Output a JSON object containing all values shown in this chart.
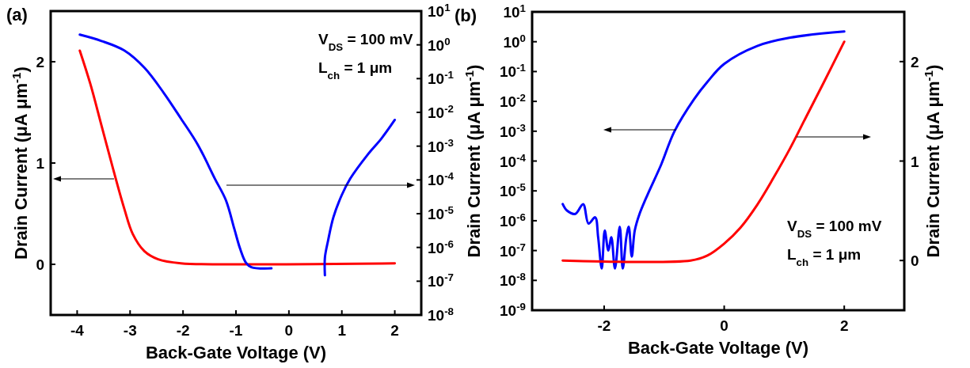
{
  "chart_data": [
    {
      "type": "line",
      "title": "(a)",
      "xlabel": "Back-Gate Voltage (V)",
      "ylabel": "Drain Current (μA μm$^{-1}$)",
      "xlim": [
        -4.5,
        2.5
      ],
      "xticks": [
        -4,
        -3,
        -2,
        -1,
        0,
        1,
        2
      ],
      "ylim": [
        -0.5,
        2.5
      ],
      "yticks": [
        0,
        1,
        2
      ],
      "y2lim": [
        1e-08,
        10
      ],
      "y2ticks": [
        {
          "value": 1e-08,
          "label": "10$^{-8}$"
        },
        {
          "value": 1e-07,
          "label": "10$^{-7}$"
        },
        {
          "value": 1e-06,
          "label": "10$^{-6}$"
        },
        {
          "value": 1e-05,
          "label": "10$^{-5}$"
        },
        {
          "value": 0.0001,
          "label": "10$^{-4}$"
        },
        {
          "value": 0.001,
          "label": "10$^{-3}$"
        },
        {
          "value": 0.01,
          "label": "10$^{-2}$"
        },
        {
          "value": 0.1,
          "label": "10$^{-1}$"
        },
        {
          "value": 1,
          "label": "10$^{0}$"
        },
        {
          "value": 10,
          "label": "10$^{1}$"
        }
      ],
      "log": "y2",
      "grid": false,
      "annotations": [
        "V$_{DS}$ = 100 mV",
        "L$_{ch}$ = 1 μm"
      ],
      "series": [
        {
          "color": "#ff0000",
          "x": [
            -3.95,
            -3.75,
            -3.54,
            -3.32,
            -3.11,
            -2.95,
            -2.73,
            -2.47,
            -2.04,
            -1.19,
            2.0
          ],
          "values": [
            2.11,
            1.78,
            1.37,
            0.94,
            0.55,
            0.3,
            0.13,
            0.05,
            0.01,
            0,
            0.01
          ]
        },
        {
          "color": "#0000ff",
          "axis": "y2",
          "x": [
            -3.95,
            -3.54,
            -3.11,
            -2.73,
            -2.36,
            -2.04,
            -1.72,
            -1.4,
            -1.19,
            -1.03,
            -0.92,
            -0.81,
            -0.71,
            -0.33,
            0.2,
            0.68,
            0.68,
            0.74,
            0.84,
            1.0,
            1.16,
            1.48,
            1.75,
            2.0
          ],
          "values": [
            2.0,
            1.3,
            0.68,
            0.21,
            0.037,
            0.0066,
            0.0011,
            0.00011,
            2.5e-05,
            3.5e-06,
            9e-07,
            3.5e-07,
            2.6e-07,
            2.4e-07,
            null,
            1.5e-07,
            5e-07,
            1.6e-06,
            7.8e-06,
            3.6e-05,
            0.00011,
            0.00054,
            0.0017,
            0.006
          ]
        }
      ]
    },
    {
      "type": "line",
      "title": "(b)",
      "xlabel": "Back-Gate Voltage (V)",
      "ylabel": "Drain Current (μA μm$^{-1}$)",
      "y2label": "Drain Current (μA μm$^{-1}$)",
      "xlim": [
        -3.2,
        3
      ],
      "xticks": [
        -2,
        0,
        2
      ],
      "ylim": [
        1e-09,
        10
      ],
      "yticks": [
        {
          "value": 1e-09,
          "label": "10$^{-9}$"
        },
        {
          "value": 1e-08,
          "label": "10$^{-8}$"
        },
        {
          "value": 1e-07,
          "label": "10$^{-7}$"
        },
        {
          "value": 1e-06,
          "label": "10$^{-6}$"
        },
        {
          "value": 1e-05,
          "label": "10$^{-5}$"
        },
        {
          "value": 0.0001,
          "label": "10$^{-4}$"
        },
        {
          "value": 0.001,
          "label": "10$^{-3}$"
        },
        {
          "value": 0.01,
          "label": "10$^{-2}$"
        },
        {
          "value": 0.1,
          "label": "10$^{-1}$"
        },
        {
          "value": 1,
          "label": "10$^{0}$"
        },
        {
          "value": 10,
          "label": "10$^{1}$"
        }
      ],
      "y2lim": [
        -0.5,
        2.5
      ],
      "y2ticks": [
        0,
        1,
        2
      ],
      "log": "y",
      "grid": false,
      "annotations": [
        "V$_{DS}$ = 100 mV",
        "L$_{ch}$ = 1 μm"
      ],
      "series": [
        {
          "color": "#0000ff",
          "x": [
            -2.69,
            -2.62,
            -2.48,
            -2.35,
            -2.26,
            -2.15,
            -2.1,
            -2.04,
            -1.99,
            -1.93,
            -1.88,
            -1.82,
            -1.74,
            -1.69,
            -1.63,
            -1.59,
            -1.54,
            -1.49,
            -1.41,
            -1.27,
            -1.05,
            -0.83,
            -0.5,
            -0.28,
            0,
            0.55,
            1.1,
            2.0
          ],
          "values": [
            3.6e-06,
            2.2e-06,
            1.7e-06,
            3.6e-06,
            8e-07,
            1.3e-06,
            2.8e-07,
            2.5e-08,
            4.7e-07,
            1e-07,
            2.8e-07,
            2.5e-08,
            6.3e-07,
            2.5e-08,
            2.8e-07,
            6.3e-07,
            6.3e-08,
            4.7e-07,
            1.7e-06,
            8e-06,
            7.6e-05,
            0.00098,
            0.012,
            0.045,
            0.18,
            0.72,
            1.37,
            2.2
          ]
        },
        {
          "color": "#ff0000",
          "axis": "y2",
          "x": [
            -2.69,
            -0.56,
            -0.28,
            0,
            0.27,
            0.55,
            0.82,
            1.1,
            1.37,
            1.65,
            2.0
          ],
          "values": [
            0,
            0,
            0.05,
            0.17,
            0.33,
            0.56,
            0.83,
            1.13,
            1.45,
            1.78,
            2.2
          ]
        }
      ]
    }
  ]
}
